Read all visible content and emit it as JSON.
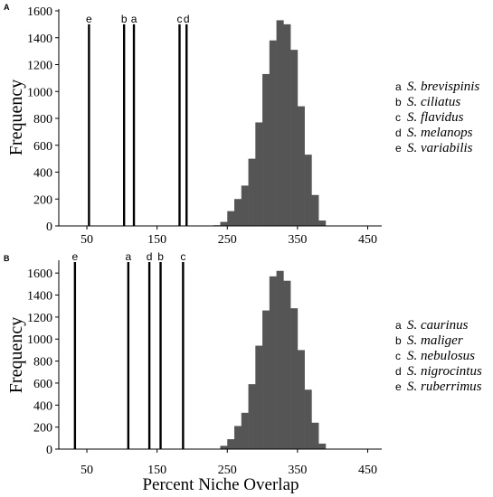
{
  "xlabel": "Percent Niche Overlap",
  "chart_data": [
    {
      "type": "bar",
      "panel": "A",
      "ylabel": "Frequency",
      "xlim": [
        10,
        470
      ],
      "ylim": [
        0,
        1600
      ],
      "xticks": [
        50,
        150,
        250,
        350,
        450
      ],
      "yticks": [
        0,
        200,
        400,
        600,
        800,
        1000,
        1200,
        1400,
        1600
      ],
      "histogram": {
        "bin_width": 10,
        "bin_starts": [
          230,
          240,
          250,
          260,
          270,
          280,
          290,
          300,
          310,
          320,
          330,
          340,
          350,
          360,
          370,
          380
        ],
        "counts": [
          5,
          30,
          110,
          200,
          300,
          500,
          770,
          1130,
          1380,
          1530,
          1500,
          1310,
          890,
          530,
          230,
          40
        ]
      },
      "observed": [
        {
          "letter": "e",
          "value": 53,
          "height": 1500
        },
        {
          "letter": "b",
          "value": 103,
          "height": 1500
        },
        {
          "letter": "a",
          "value": 117,
          "height": 1500
        },
        {
          "letter": "c",
          "value": 182,
          "height": 1500
        },
        {
          "letter": "d",
          "value": 192,
          "height": 1500
        }
      ],
      "legend": [
        {
          "letter": "a",
          "name": "S. brevispinis"
        },
        {
          "letter": "b",
          "name": "S. ciliatus"
        },
        {
          "letter": "c",
          "name": "S. flavidus"
        },
        {
          "letter": "d",
          "name": "S. melanops"
        },
        {
          "letter": "e",
          "name": "S. variabilis"
        }
      ]
    },
    {
      "type": "bar",
      "panel": "B",
      "ylabel": "Frequency",
      "xlim": [
        10,
        470
      ],
      "ylim": [
        0,
        1700
      ],
      "xticks": [
        50,
        150,
        250,
        350,
        450
      ],
      "yticks": [
        0,
        200,
        400,
        600,
        800,
        1000,
        1200,
        1400,
        1600
      ],
      "histogram": {
        "bin_width": 10,
        "bin_starts": [
          240,
          250,
          260,
          270,
          280,
          290,
          300,
          310,
          320,
          330,
          340,
          350,
          360,
          370,
          380
        ],
        "counts": [
          30,
          90,
          210,
          330,
          590,
          940,
          1260,
          1570,
          1620,
          1530,
          1280,
          900,
          540,
          240,
          50
        ]
      },
      "observed": [
        {
          "letter": "e",
          "value": 33,
          "height": 1700
        },
        {
          "letter": "a",
          "value": 109,
          "height": 1700
        },
        {
          "letter": "d",
          "value": 139,
          "height": 1700
        },
        {
          "letter": "b",
          "value": 155,
          "height": 1700
        },
        {
          "letter": "c",
          "value": 187,
          "height": 1700
        }
      ],
      "legend": [
        {
          "letter": "a",
          "name": "S. caurinus"
        },
        {
          "letter": "b",
          "name": "S. maliger"
        },
        {
          "letter": "c",
          "name": "S. nebulosus"
        },
        {
          "letter": "d",
          "name": "S. nigrocintus"
        },
        {
          "letter": "e",
          "name": "S. ruberrimus"
        }
      ]
    }
  ],
  "colors": {
    "histogram": "#555555",
    "observed_line": "#000000",
    "axis": "#000000"
  }
}
